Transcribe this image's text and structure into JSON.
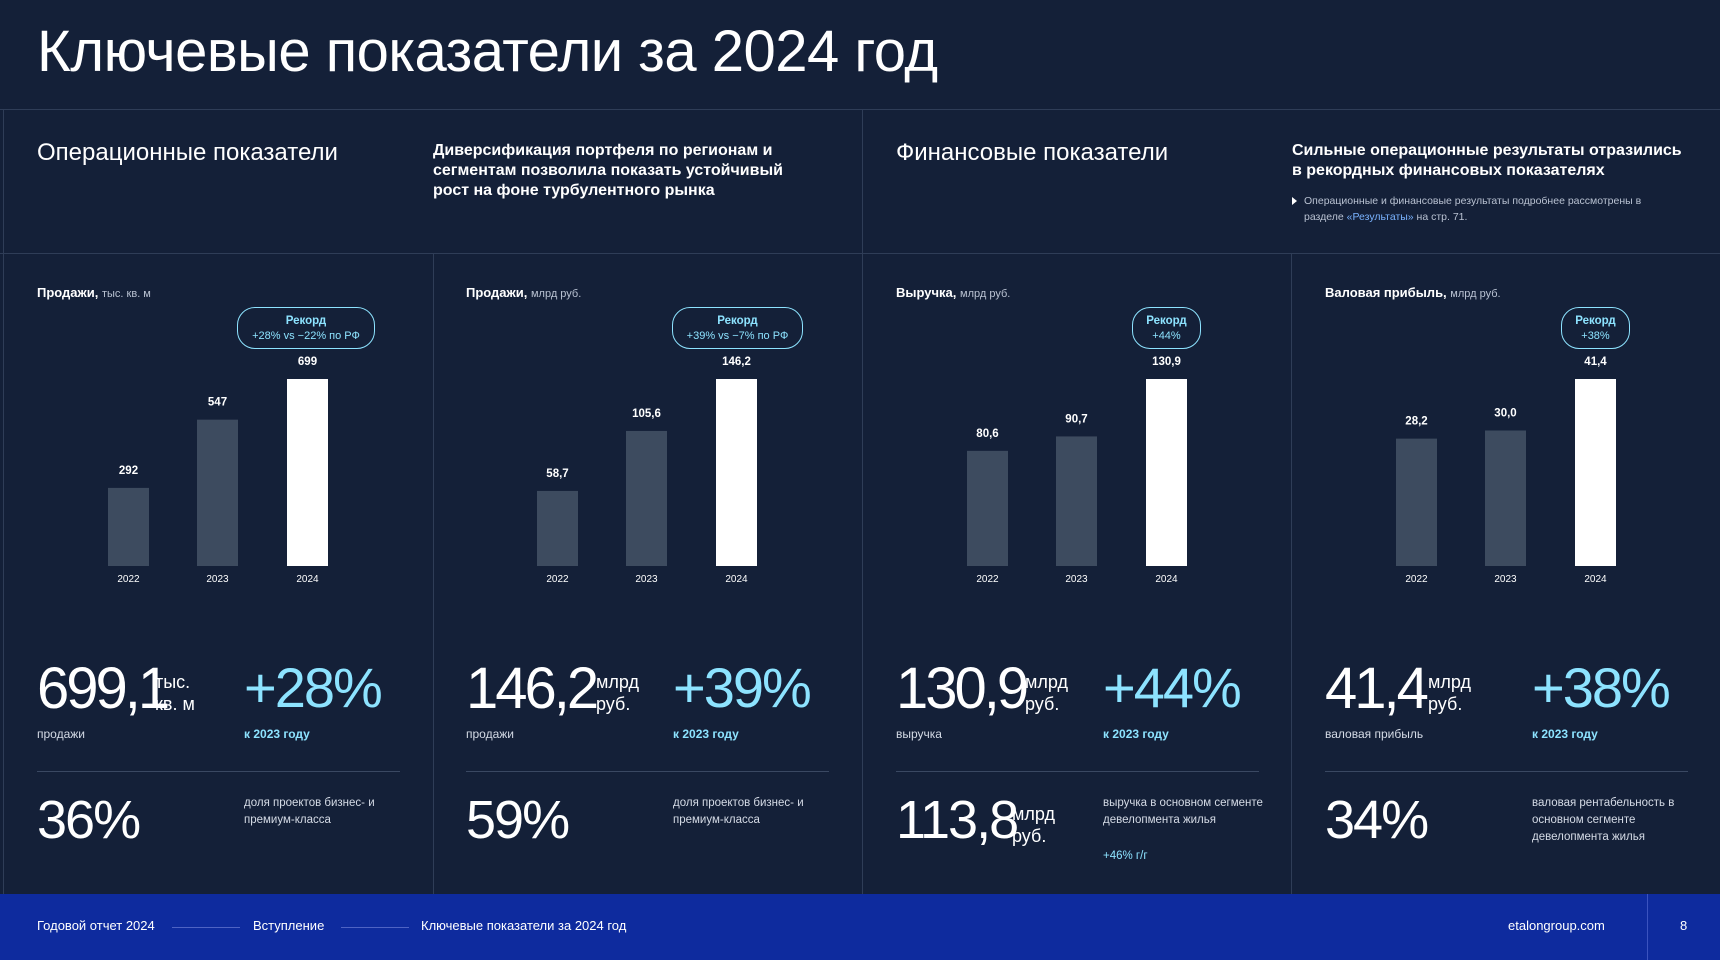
{
  "page": {
    "title": "Ключевые показатели за 2024 год"
  },
  "sections": {
    "operational": {
      "title": "Операционные показатели",
      "description": "Диверсификация портфеля по регионам и сегментам позволила показать устойчивый рост на фоне турбулентного рынка"
    },
    "financial": {
      "title": "Финансовые показатели",
      "description": "Сильные операционные результаты отразились в рекордных финансовых показателях",
      "note_pre": "Операционные и финансовые результаты подробнее рассмотрены в разделе ",
      "note_link": "«Результаты»",
      "note_post": " на стр. 71."
    }
  },
  "panels": [
    {
      "label": "Продажи,",
      "unit": "тыс. кв. м",
      "badge_title": "Рекорд",
      "badge_text": "+28% vs −22% по РФ",
      "big_value": "699,1",
      "big_unit_1": "тыс.",
      "big_unit_2": "кв. м",
      "big_caption": "продажи",
      "growth": "+28%",
      "growth_caption": "к 2023 году",
      "bottom_value": "36%",
      "bottom_unit_1": "",
      "bottom_unit_2": "",
      "bottom_desc": "доля проектов бизнес- и премиум-класса",
      "bottom_extra": ""
    },
    {
      "label": "Продажи,",
      "unit": "млрд руб.",
      "badge_title": "Рекорд",
      "badge_text": "+39% vs −7% по РФ",
      "big_value": "146,2",
      "big_unit_1": "млрд",
      "big_unit_2": "руб.",
      "big_caption": "продажи",
      "growth": "+39%",
      "growth_caption": "к 2023 году",
      "bottom_value": "59%",
      "bottom_unit_1": "",
      "bottom_unit_2": "",
      "bottom_desc": "доля проектов бизнес- и премиум-класса",
      "bottom_extra": ""
    },
    {
      "label": "Выручка,",
      "unit": "млрд руб.",
      "badge_title": "Рекорд",
      "badge_text": "+44%",
      "big_value": "130,9",
      "big_unit_1": "млрд",
      "big_unit_2": "руб.",
      "big_caption": "выручка",
      "growth": "+44%",
      "growth_caption": "к 2023 году",
      "bottom_value": "113,8",
      "bottom_unit_1": "млрд",
      "bottom_unit_2": "руб.",
      "bottom_desc": "выручка в основном сегменте девелопмента жилья",
      "bottom_extra": "+46% г/г"
    },
    {
      "label": "Валовая прибыль,",
      "unit": "млрд руб.",
      "badge_title": "Рекорд",
      "badge_text": "+38%",
      "big_value": "41,4",
      "big_unit_1": "млрд",
      "big_unit_2": "руб.",
      "big_caption": "валовая прибыль",
      "growth": "+38%",
      "growth_caption": "к 2023 году",
      "bottom_value": "34%",
      "bottom_unit_1": "",
      "bottom_unit_2": "",
      "bottom_desc": "валовая рентабельность в основном сегменте девелопмента жилья",
      "bottom_extra": ""
    }
  ],
  "chart_data": [
    {
      "type": "bar",
      "title": "Продажи, тыс. кв. м",
      "categories": [
        "2022",
        "2023",
        "2024"
      ],
      "values": [
        292,
        547,
        699
      ],
      "labels": [
        "292",
        "547",
        "699"
      ],
      "highlight": "2024"
    },
    {
      "type": "bar",
      "title": "Продажи, млрд руб.",
      "categories": [
        "2022",
        "2023",
        "2024"
      ],
      "values": [
        58.7,
        105.6,
        146.2
      ],
      "labels": [
        "58,7",
        "105,6",
        "146,2"
      ],
      "highlight": "2024"
    },
    {
      "type": "bar",
      "title": "Выручка, млрд руб.",
      "categories": [
        "2022",
        "2023",
        "2024"
      ],
      "values": [
        80.6,
        90.7,
        130.9
      ],
      "labels": [
        "80,6",
        "90,7",
        "130,9"
      ],
      "highlight": "2024"
    },
    {
      "type": "bar",
      "title": "Валовая прибыль, млрд руб.",
      "categories": [
        "2022",
        "2023",
        "2024"
      ],
      "values": [
        28.2,
        30.0,
        41.4
      ],
      "labels": [
        "28,2",
        "30,0",
        "41,4"
      ],
      "highlight": "2024"
    }
  ],
  "colors": {
    "background": "#142038",
    "bar_past": "#3d4b5f",
    "bar_current": "#ffffff",
    "accent": "#8de3ff",
    "footer": "#0e2b9e"
  },
  "footer": {
    "crumb_1": "Годовой отчет 2024",
    "crumb_2": "Вступление",
    "crumb_3": "Ключевые показатели за 2024 год",
    "site": "etalongroup.com",
    "page_number": "8"
  }
}
